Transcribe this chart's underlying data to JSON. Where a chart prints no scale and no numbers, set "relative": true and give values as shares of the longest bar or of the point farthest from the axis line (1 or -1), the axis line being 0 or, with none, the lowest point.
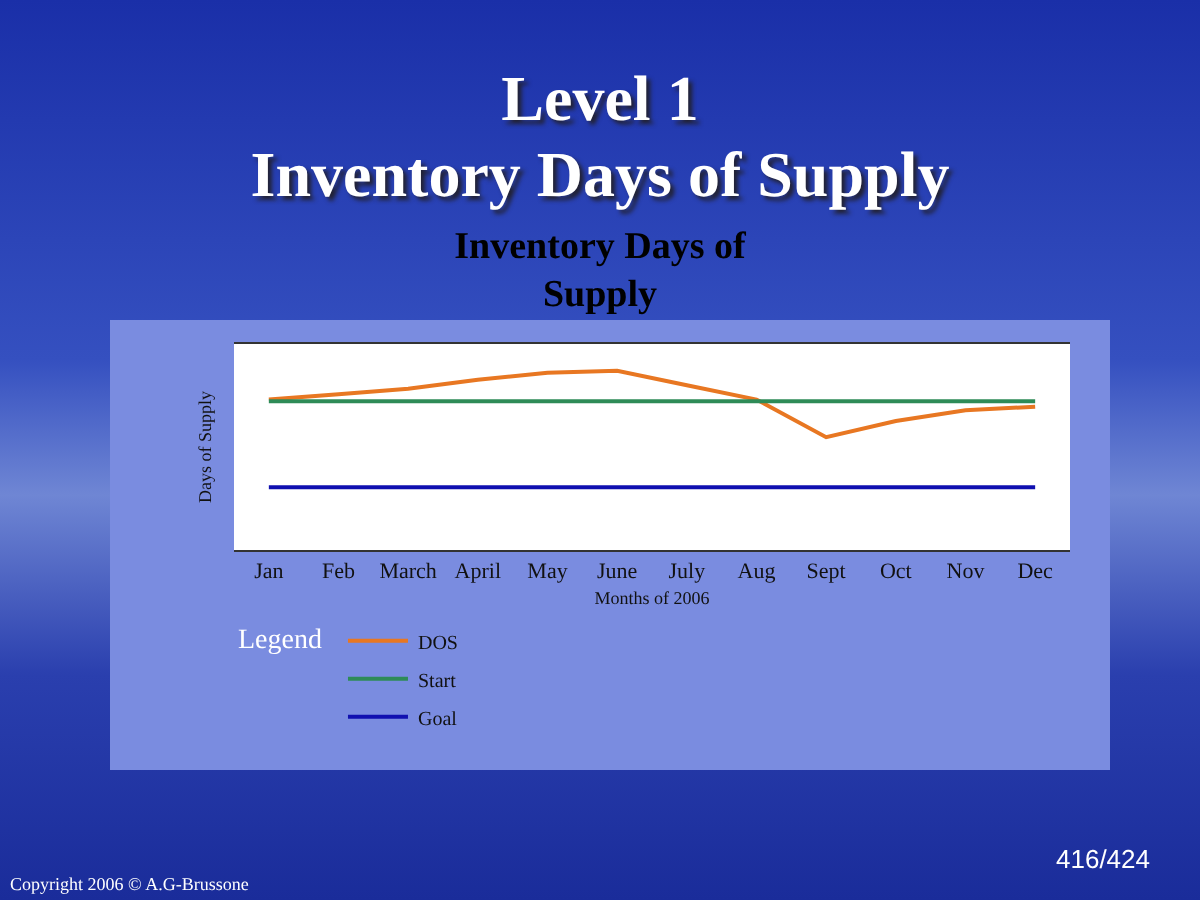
{
  "chart_data": {
    "type": "line",
    "title": "Level 1\nInventory Days of Supply",
    "subtitle": "Inventory Days of\nSupply",
    "xlabel": "Months of 2006",
    "ylabel": "Days of Supply",
    "legend_title": "Legend",
    "relative": true,
    "legend": "bottom left",
    "grid": false,
    "marker": "none",
    "line_style": "solid",
    "categories": [
      "Jan",
      "Feb",
      "March",
      "April",
      "May",
      "June",
      "July",
      "Aug",
      "Sept",
      "Oct",
      "Nov",
      "Dec"
    ],
    "series": [
      {
        "name": "DOS",
        "color": "#e87722",
        "values": [
          0.84,
          0.87,
          0.9,
          0.95,
          0.99,
          1,
          0.92,
          0.84,
          0.63,
          0.72,
          0.78,
          0.8
        ]
      },
      {
        "name": "Start",
        "color": "#2e8b57",
        "values": [
          0.83,
          0.83,
          0.83,
          0.83,
          0.83,
          0.83,
          0.83,
          0.83,
          0.83,
          0.83,
          0.83,
          0.83
        ]
      },
      {
        "name": "Goal",
        "color": "#1010b0",
        "values": [
          0.35,
          0.35,
          0.35,
          0.35,
          0.35,
          0.35,
          0.35,
          0.35,
          0.35,
          0.35,
          0.35,
          0.35
        ]
      }
    ],
    "annotations": [
      "416/424",
      "Copyright 2006 © A.G-Brussone"
    ]
  }
}
